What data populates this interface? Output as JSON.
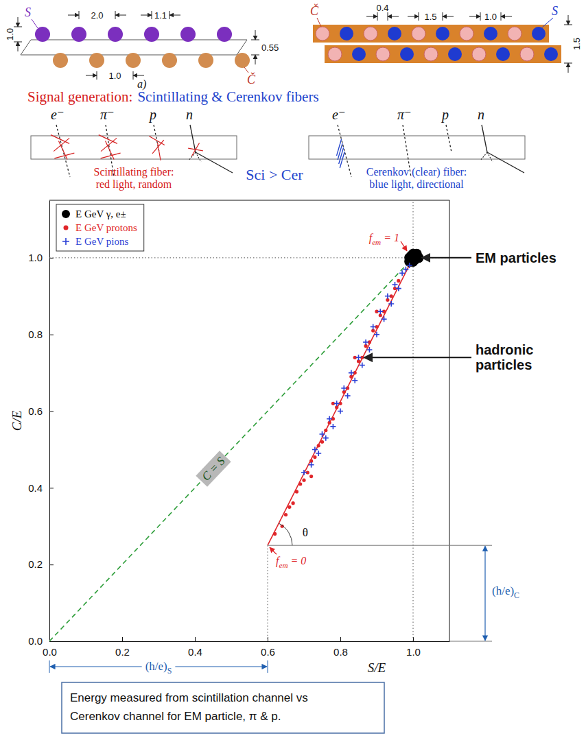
{
  "fiber_layouts": [
    {
      "label": "a)",
      "scintillating_label": "S",
      "cerenkov_label": "Č",
      "dimensions": [
        "2.0",
        "1.1",
        "1.0",
        "0.55",
        "1.0"
      ]
    },
    {
      "scintillating_label": "S",
      "cerenkov_label": "Č",
      "dimensions": [
        "0.4",
        "1.5",
        "1.0",
        "1.5"
      ]
    }
  ],
  "signal_generation": {
    "title": "Signal generation:",
    "subtitle": "Scintillating & Cerenkov fibers",
    "comparison": "Sci > Cer",
    "panels": [
      {
        "particles": [
          "e⁻",
          "π⁻",
          "p",
          "n"
        ],
        "caption": [
          "Scintillating fiber:",
          "red light, random"
        ],
        "color": "#d62020"
      },
      {
        "particles": [
          "e⁻",
          "π⁻",
          "p",
          "n"
        ],
        "caption": [
          "Cerenkov (clear) fiber:",
          "blue light, directional"
        ],
        "color": "#2244cc"
      }
    ]
  },
  "chart_data": {
    "type": "scatter",
    "x_label": "S/E",
    "y_label": "C/E",
    "xlim": [
      0,
      1.1
    ],
    "ylim": [
      0,
      1.15
    ],
    "xticks": [
      {
        "value": 0,
        "label": "0.0"
      },
      0.2,
      0.4,
      0.6,
      0.8,
      {
        "value": 1,
        "label": "1.0"
      }
    ],
    "yticks": [
      {
        "value": 0,
        "label": "0.0"
      },
      0.2,
      0.4,
      0.6,
      0.8,
      {
        "value": 1,
        "label": "1.0"
      }
    ],
    "legend": "upper left",
    "series": [
      {
        "name": "E GeV γ, e±",
        "color": "#000000",
        "marker": "circle",
        "x": [
          0.99,
          1.0,
          1.01,
          1.0,
          0.995,
          1.005,
          1.0,
          1.01,
          0.99,
          1.015
        ],
        "values": [
          1.0,
          0.99,
          1.0,
          1.01,
          1.005,
          0.995,
          1.0,
          1.01,
          0.99,
          1.0
        ]
      },
      {
        "name": "E GeV protons",
        "color": "#e0262a",
        "marker": "dot",
        "x": [
          0.62,
          0.64,
          0.65,
          0.66,
          0.67,
          0.68,
          0.69,
          0.7,
          0.71,
          0.72,
          0.72,
          0.73,
          0.74,
          0.75,
          0.76,
          0.77,
          0.78,
          0.78,
          0.79,
          0.8,
          0.81,
          0.82,
          0.83,
          0.84,
          0.84,
          0.85,
          0.86,
          0.87,
          0.88,
          0.89,
          0.9,
          0.9,
          0.91,
          0.92,
          0.93,
          0.94,
          0.95,
          0.96
        ],
        "values": [
          0.28,
          0.3,
          0.33,
          0.35,
          0.36,
          0.39,
          0.41,
          0.42,
          0.44,
          0.47,
          0.43,
          0.48,
          0.51,
          0.52,
          0.55,
          0.57,
          0.58,
          0.62,
          0.61,
          0.62,
          0.65,
          0.66,
          0.69,
          0.7,
          0.74,
          0.73,
          0.74,
          0.77,
          0.78,
          0.81,
          0.82,
          0.86,
          0.85,
          0.86,
          0.89,
          0.9,
          0.92,
          0.94
        ]
      },
      {
        "name": "E GeV pions",
        "color": "#2a3fd6",
        "marker": "plus",
        "x": [
          0.7,
          0.72,
          0.73,
          0.74,
          0.75,
          0.76,
          0.77,
          0.78,
          0.79,
          0.8,
          0.81,
          0.82,
          0.83,
          0.84,
          0.85,
          0.86,
          0.87,
          0.88,
          0.89,
          0.9,
          0.91,
          0.92,
          0.93,
          0.94,
          0.95,
          0.96,
          0.97,
          0.98,
          0.99
        ],
        "values": [
          0.44,
          0.46,
          0.5,
          0.49,
          0.54,
          0.53,
          0.58,
          0.56,
          0.62,
          0.6,
          0.66,
          0.64,
          0.7,
          0.68,
          0.74,
          0.72,
          0.78,
          0.76,
          0.82,
          0.8,
          0.86,
          0.84,
          0.9,
          0.88,
          0.93,
          0.92,
          0.96,
          0.97,
          0.98
        ]
      }
    ],
    "diagonal": {
      "label": "C = S",
      "color": "#2e9e3a",
      "x": [
        0,
        1
      ],
      "y": [
        0,
        1
      ]
    },
    "hadron_line": {
      "color": "#e0262a",
      "x": [
        0.6,
        1
      ],
      "y": [
        0.25,
        1
      ],
      "start_label": {
        "text": "f",
        "subscript": "em",
        "suffix": " = 0"
      },
      "end_label": {
        "text": "f",
        "subscript": "em",
        "suffix": " = 1"
      },
      "angle_label": "θ"
    },
    "reference_lines": {
      "x": 1,
      "y": 1
    },
    "h_over_e": {
      "s": {
        "value": 0.6,
        "label": {
          "text": "(h/e)",
          "subscript": "S"
        }
      },
      "c": {
        "value": 0.25,
        "label": {
          "text": "(h/e)",
          "subscript": "C"
        }
      }
    },
    "callouts": [
      [
        "EM particles"
      ],
      [
        "hadronic",
        "particles"
      ]
    ]
  },
  "caption": [
    "Energy measured from scintillation channel vs",
    "Cerenkov channel for EM particle, π & p."
  ]
}
